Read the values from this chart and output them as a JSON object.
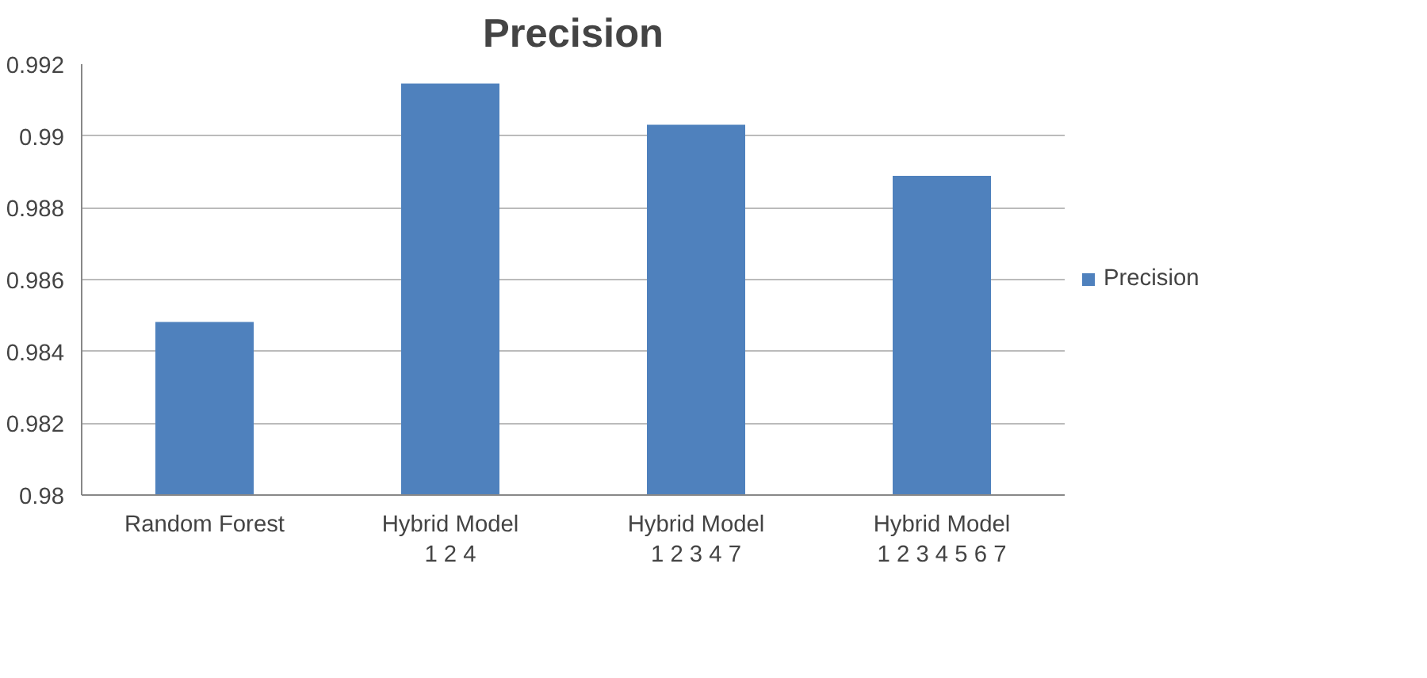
{
  "chart_data": {
    "type": "bar",
    "title": "Precision",
    "categories": [
      "Random Forest",
      "Hybrid Model\n1 2 4",
      "Hybrid Model\n1 2 3 4 7",
      "Hybrid Model\n1 2 3 4 5 6 7"
    ],
    "series": [
      {
        "name": "Precision",
        "color": "#4f81bd",
        "values": [
          0.98482,
          0.99146,
          0.99031,
          0.98889
        ]
      }
    ],
    "ylim": [
      0.98,
      0.992
    ],
    "yticks": [
      {
        "value": 0.98,
        "label": "0.98"
      },
      {
        "value": 0.982,
        "label": "0.982"
      },
      {
        "value": 0.984,
        "label": "0.984"
      },
      {
        "value": 0.986,
        "label": "0.986"
      },
      {
        "value": 0.988,
        "label": "0.988"
      },
      {
        "value": 0.99,
        "label": "0.99"
      },
      {
        "value": 0.992,
        "label": "0.992"
      }
    ],
    "grid": "y",
    "legend": "right"
  }
}
